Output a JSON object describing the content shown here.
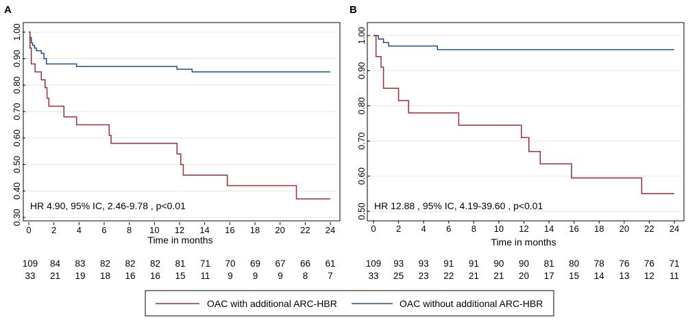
{
  "colors": {
    "with_arc": "#9e2a35",
    "without_arc": "#1f4e79",
    "grid": "#e4e4e4"
  },
  "legend": {
    "with_label": "OAC with additional ARC-HBR",
    "without_label": "OAC without additional ARC-HBR"
  },
  "chart_data": [
    {
      "type": "line",
      "step": true,
      "panel_label": "A",
      "xlabel": "Time in months",
      "ylabel": "",
      "xlim": [
        0,
        24
      ],
      "ylim": [
        0.3,
        1.0
      ],
      "x_ticks": [
        0,
        2,
        4,
        6,
        8,
        10,
        12,
        14,
        16,
        18,
        20,
        22,
        24
      ],
      "y_ticks": [
        0.3,
        0.4,
        0.5,
        0.6,
        0.7,
        0.8,
        0.9,
        1.0
      ],
      "y_tick_labels": [
        "0.30",
        "0.40",
        "0.50",
        "0.60",
        "0.70",
        "0.80",
        "0.90",
        "1.00"
      ],
      "grid": true,
      "annotation": "HR 4.90, 95% IC, 2.46-9.78 , p<0.01",
      "series": [
        {
          "name": "OAC without additional ARC-HBR",
          "color_key": "without_arc",
          "x": [
            0,
            0.1,
            0.2,
            0.3,
            0.45,
            0.6,
            0.75,
            1.0,
            1.2,
            1.4,
            3.8,
            11.8,
            13.0,
            24
          ],
          "y": [
            1.0,
            0.98,
            0.96,
            0.95,
            0.94,
            0.93,
            0.93,
            0.92,
            0.9,
            0.88,
            0.87,
            0.86,
            0.85,
            0.85
          ]
        },
        {
          "name": "OAC with additional ARC-HBR",
          "color_key": "with_arc",
          "x": [
            0,
            0.1,
            0.2,
            0.5,
            1.0,
            1.3,
            1.45,
            1.6,
            2.8,
            3.8,
            6.4,
            6.55,
            11.8,
            12.1,
            12.3,
            15.8,
            21.3,
            24
          ],
          "y": [
            1.0,
            0.94,
            0.88,
            0.85,
            0.82,
            0.79,
            0.75,
            0.72,
            0.68,
            0.65,
            0.61,
            0.58,
            0.54,
            0.5,
            0.46,
            0.42,
            0.37,
            0.37
          ]
        }
      ],
      "at_risk": {
        "times": [
          0,
          2,
          4,
          6,
          8,
          10,
          12,
          14,
          16,
          18,
          20,
          22,
          24
        ],
        "without_arc": [
          "109",
          "84",
          "83",
          "82",
          "82",
          "82",
          "81",
          "71",
          "70",
          "69",
          "67",
          "66",
          "61"
        ],
        "with_arc": [
          "33",
          "21",
          "19",
          "18",
          "16",
          "16",
          "15",
          "11",
          "9",
          "9",
          "9",
          "8",
          "7"
        ]
      }
    },
    {
      "type": "line",
      "step": true,
      "panel_label": "B",
      "xlabel": "Time in months",
      "ylabel": "",
      "xlim": [
        0,
        24
      ],
      "ylim": [
        0.5,
        1.0
      ],
      "x_ticks": [
        0,
        2,
        4,
        6,
        8,
        10,
        12,
        14,
        16,
        18,
        20,
        22,
        24
      ],
      "y_ticks": [
        0.5,
        0.6,
        0.7,
        0.8,
        0.9,
        1.0
      ],
      "y_tick_labels": [
        "0.50",
        "0.60",
        "0.70",
        "0.80",
        "0.90",
        "1.00"
      ],
      "grid": true,
      "annotation": "HR 12.88 , 95% IC, 4.19-39.60 , p<0.01",
      "series": [
        {
          "name": "OAC without additional ARC-HBR",
          "color_key": "without_arc",
          "x": [
            0,
            0.4,
            0.8,
            1.2,
            5.1,
            24
          ],
          "y": [
            1.0,
            0.99,
            0.98,
            0.97,
            0.96,
            0.96
          ],
          "end_y": 0.96
        },
        {
          "name": "OAC with additional ARC-HBR",
          "color_key": "with_arc",
          "x": [
            0,
            0.2,
            0.6,
            0.8,
            2.0,
            2.8,
            6.8,
            11.8,
            12.4,
            13.3,
            15.8,
            21.4,
            24
          ],
          "y": [
            1.0,
            0.94,
            0.91,
            0.85,
            0.815,
            0.78,
            0.745,
            0.71,
            0.67,
            0.635,
            0.595,
            0.55,
            0.55
          ]
        }
      ],
      "at_risk": {
        "times": [
          0,
          2,
          4,
          6,
          8,
          10,
          12,
          14,
          16,
          18,
          20,
          22,
          24
        ],
        "without_arc": [
          "109",
          "93",
          "93",
          "91",
          "91",
          "90",
          "90",
          "81",
          "80",
          "78",
          "76",
          "76",
          "71"
        ],
        "with_arc": [
          "33",
          "25",
          "23",
          "22",
          "21",
          "21",
          "20",
          "17",
          "15",
          "14",
          "13",
          "12",
          "11"
        ]
      }
    }
  ]
}
